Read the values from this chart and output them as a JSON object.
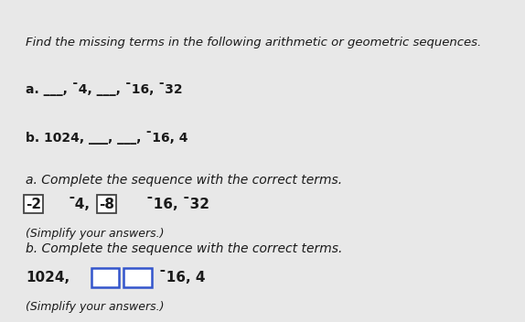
{
  "bg_top_bar": "#2d5a5a",
  "bg_main": "#e8e8e8",
  "panel_bg": "#ffffff",
  "panel_border": "#cccccc",
  "divider_color": "#aaaaaa",
  "title_text": "Find the missing terms in the following arithmetic or geometric sequences.",
  "seq_a": "a. ___, ¯4, ___, ¯16, ¯32",
  "seq_b": "b. 1024, ___, ___, ¯16, 4",
  "label_a": "a. Complete the sequence with the correct terms.",
  "label_b": "b. Complete the sequence with the correct terms.",
  "ans_a_box1": "-2",
  "ans_a_mid": "¯4,",
  "ans_a_box2": "-8",
  "ans_a_end": "¯16, ¯32",
  "ans_b_prefix": "1024,",
  "ans_b_suffix": "¯16, 4",
  "simplify": "(Simplify your answers.)",
  "font_color": "#1a1a1a",
  "blue_box_color": "#3355cc",
  "gray_box_color": "#444444",
  "font_size_title": 9.5,
  "font_size_seq": 10,
  "font_size_label": 10,
  "font_size_answer": 11,
  "font_size_simplify": 9
}
